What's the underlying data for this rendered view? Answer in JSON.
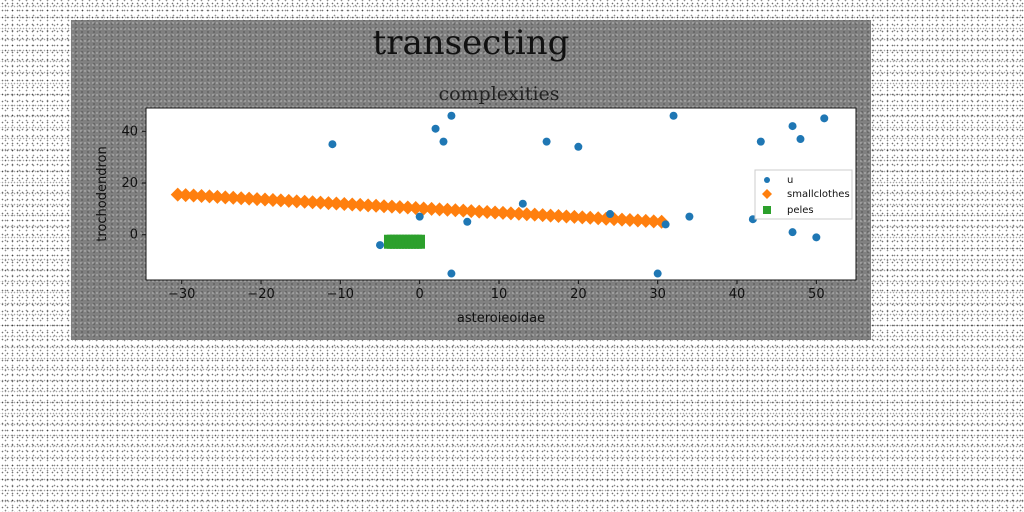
{
  "figure": {
    "suptitle": "transecting"
  },
  "chart_data": {
    "type": "scatter",
    "title": "complexities",
    "xlabel": "asteroieoidae",
    "ylabel": "trochodendron",
    "xlim": [
      -34.5,
      55
    ],
    "ylim": [
      -17.5,
      49
    ],
    "xticks": [
      -30,
      -20,
      -10,
      0,
      10,
      20,
      30,
      40,
      50
    ],
    "yticks": [
      0,
      20,
      40
    ],
    "grid": false,
    "legend_position": "right",
    "series": [
      {
        "name": "u",
        "marker": "circle",
        "color": "#1f77b4",
        "points": [
          [
            -11,
            35
          ],
          [
            2,
            41
          ],
          [
            3,
            36
          ],
          [
            4,
            46
          ],
          [
            16,
            36
          ],
          [
            20,
            34
          ],
          [
            32,
            46
          ],
          [
            43,
            36
          ],
          [
            47,
            42
          ],
          [
            48,
            37
          ],
          [
            51,
            45
          ],
          [
            0,
            7
          ],
          [
            6,
            5
          ],
          [
            13,
            12
          ],
          [
            24,
            8
          ],
          [
            31,
            4
          ],
          [
            34,
            7
          ],
          [
            42,
            6
          ],
          [
            47,
            1
          ],
          [
            50,
            -1
          ],
          [
            -5,
            -4
          ],
          [
            4,
            -15
          ],
          [
            30,
            -15
          ]
        ]
      },
      {
        "name": "smallclothes",
        "marker": "diamond",
        "color": "#ff7f0e",
        "line_from": [
          -30.5,
          15.5
        ],
        "line_to": [
          30.5,
          5
        ],
        "count": 62
      },
      {
        "name": "peles",
        "marker": "square",
        "color": "#2ca02c",
        "block_x": [
          -4.5,
          0.5
        ],
        "block_y": [
          -5,
          0
        ]
      }
    ]
  }
}
